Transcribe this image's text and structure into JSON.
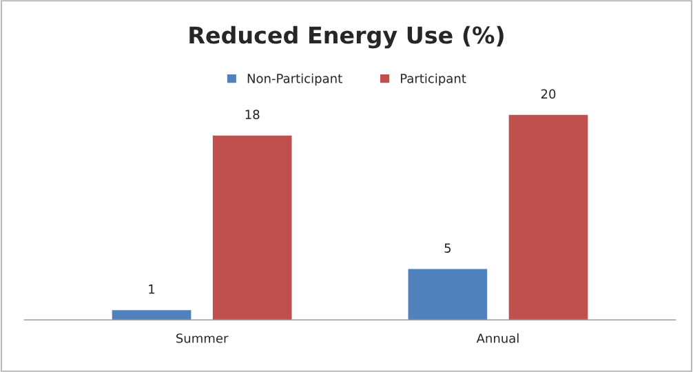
{
  "chart_data": {
    "type": "bar",
    "title": "Reduced Energy Use (%)",
    "categories": [
      "Summer",
      "Annual"
    ],
    "series": [
      {
        "name": "Non-Participant",
        "color": "#4f81bd",
        "values": [
          1,
          5
        ]
      },
      {
        "name": "Participant",
        "color": "#c0504d",
        "values": [
          18,
          20
        ]
      }
    ],
    "data_labels": true,
    "legend": "top",
    "grid": false
  }
}
